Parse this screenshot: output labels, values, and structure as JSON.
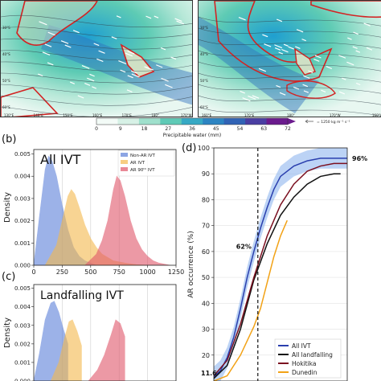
{
  "maps": {
    "left_lat_labels": [
      "30°S",
      "40°S",
      "50°S",
      "60°S"
    ],
    "left_lon_labels": [
      "130°E",
      "140°E",
      "150°E",
      "160°E",
      "170°E",
      "180°",
      "170°W"
    ],
    "right_lat_labels": [
      "30°S",
      "40°S",
      "50°S",
      "60°S"
    ],
    "right_lon_labels": [
      "160°E",
      "170°E",
      "180°",
      "170°W",
      "160°W"
    ]
  },
  "colorbar": {
    "ticks": [
      "0",
      "9",
      "18",
      "27",
      "36",
      "45",
      "54",
      "63",
      "72"
    ],
    "label": "Precipitable water (mm)",
    "arrow_label": "= 1250 kg m⁻¹ s⁻¹",
    "colors": [
      "#f3fbf7",
      "#d7f1e6",
      "#9fe0cc",
      "#5fcab6",
      "#37a9c4",
      "#2d84c2",
      "#3163b5",
      "#4a3ea2",
      "#6b1b8d"
    ]
  },
  "panel_b": {
    "letter": "(b)",
    "title": "All IVT",
    "ylabel": "Density",
    "legend": [
      "Non-AR IVT",
      "AR IVT",
      "AR 90ᵗʰ IVT"
    ]
  },
  "panel_c": {
    "letter": "(c)",
    "title": "Landfalling IVT",
    "ylabel": "Density"
  },
  "panel_d": {
    "letter": "(d)",
    "ylabel": "AR occurrence (%)",
    "annotations": [
      "96%",
      "62%",
      "11.6"
    ],
    "legend": [
      "All IVT",
      "All landfalling",
      "Hokitika",
      "Dunedin"
    ]
  },
  "chart_data": [
    {
      "type": "area",
      "panel": "b",
      "title": "All IVT",
      "xlabel": "",
      "ylabel": "Density",
      "xlim": [
        0,
        1250
      ],
      "ylim": [
        0,
        0.0052
      ],
      "xticks": [
        0,
        250,
        500,
        750,
        1000,
        1250
      ],
      "yticks": [
        0.0,
        0.001,
        0.002,
        0.003,
        0.004,
        0.005
      ],
      "series": [
        {
          "name": "Non-AR IVT",
          "color": "#5b7fd9",
          "x": [
            0,
            50,
            100,
            130,
            160,
            200,
            250,
            300,
            350,
            400,
            450,
            500,
            550
          ],
          "y": [
            0,
            0.0022,
            0.0043,
            0.0049,
            0.0047,
            0.004,
            0.0027,
            0.0016,
            0.0008,
            0.0004,
            0.0002,
            0.0001,
            0
          ]
        },
        {
          "name": "AR IVT",
          "color": "#f5b94d",
          "x": [
            100,
            200,
            250,
            300,
            330,
            360,
            400,
            450,
            500,
            550,
            600,
            700,
            800,
            900,
            1000
          ],
          "y": [
            0,
            0.0009,
            0.002,
            0.0031,
            0.0034,
            0.0032,
            0.0026,
            0.0018,
            0.0012,
            0.0008,
            0.0005,
            0.0002,
            0.0001,
            3e-05,
            0
          ]
        },
        {
          "name": "AR 90ᵗʰ IVT",
          "color": "#e0566a",
          "x": [
            450,
            550,
            600,
            650,
            700,
            730,
            760,
            800,
            850,
            900,
            950,
            1000,
            1050,
            1100,
            1200
          ],
          "y": [
            0,
            0.0005,
            0.0011,
            0.002,
            0.0034,
            0.004,
            0.0038,
            0.0031,
            0.002,
            0.0012,
            0.0007,
            0.0004,
            0.0002,
            0.0001,
            0
          ]
        }
      ]
    },
    {
      "type": "area",
      "panel": "c",
      "title": "Landfalling IVT",
      "xlabel": "",
      "ylabel": "Density",
      "xlim": [
        0,
        1250
      ],
      "ylim": [
        0,
        0.0052
      ],
      "xticks": [],
      "yticks": [
        0.0,
        0.001,
        0.002,
        0.003,
        0.004,
        0.005
      ],
      "series": [
        {
          "name": "Non-AR IVT",
          "color": "#5b7fd9",
          "x": [
            0,
            50,
            100,
            150,
            180,
            220,
            260,
            300
          ],
          "y": [
            0,
            0.0015,
            0.0033,
            0.0042,
            0.0043,
            0.0037,
            0.0028,
            0.002
          ]
        },
        {
          "name": "AR IVT",
          "color": "#f5b94d",
          "x": [
            150,
            220,
            270,
            310,
            340,
            380,
            420
          ],
          "y": [
            0,
            0.001,
            0.0023,
            0.0032,
            0.0033,
            0.0027,
            0.0019
          ]
        },
        {
          "name": "AR 90ᵗʰ IVT",
          "color": "#e0566a",
          "x": [
            480,
            560,
            620,
            680,
            720,
            760,
            800
          ],
          "y": [
            0,
            0.0006,
            0.0014,
            0.0025,
            0.0033,
            0.0031,
            0.0024
          ]
        }
      ]
    },
    {
      "type": "line",
      "panel": "d",
      "ylabel": "AR occurrence (%)",
      "ylim": [
        10,
        100
      ],
      "yticks": [
        20,
        30,
        40,
        50,
        60,
        70,
        80,
        90,
        100
      ],
      "xlim": [
        0,
        1
      ],
      "vline_x": 0.33,
      "series": [
        {
          "name": "All IVT",
          "color": "#2a3fae",
          "x": [
            0.0,
            0.05,
            0.1,
            0.15,
            0.2,
            0.25,
            0.3,
            0.35,
            0.4,
            0.45,
            0.5,
            0.6,
            0.7,
            0.8,
            0.9,
            1.0
          ],
          "y": [
            11.6,
            14,
            19,
            27,
            38,
            50,
            60,
            69,
            77,
            84,
            89,
            93,
            95,
            96,
            96,
            96
          ]
        },
        {
          "name": "All landfalling",
          "color": "#111111",
          "x": [
            0.0,
            0.1,
            0.2,
            0.3,
            0.4,
            0.5,
            0.6,
            0.7,
            0.8,
            0.9,
            0.95
          ],
          "y": [
            11,
            16,
            30,
            49,
            63,
            74,
            81,
            86,
            89,
            90,
            90
          ]
        },
        {
          "name": "Hokitika",
          "color": "#7b1020",
          "x": [
            0.0,
            0.1,
            0.2,
            0.3,
            0.4,
            0.5,
            0.6,
            0.7,
            0.8,
            0.9,
            1.0
          ],
          "y": [
            12,
            18,
            32,
            50,
            66,
            78,
            86,
            91,
            93,
            94,
            94
          ]
        },
        {
          "name": "Dunedin",
          "color": "#f2a216",
          "x": [
            0.0,
            0.1,
            0.2,
            0.3,
            0.35,
            0.4,
            0.45,
            0.5,
            0.55
          ],
          "y": [
            8,
            12,
            20,
            31,
            38,
            48,
            58,
            66,
            72
          ]
        }
      ]
    }
  ]
}
